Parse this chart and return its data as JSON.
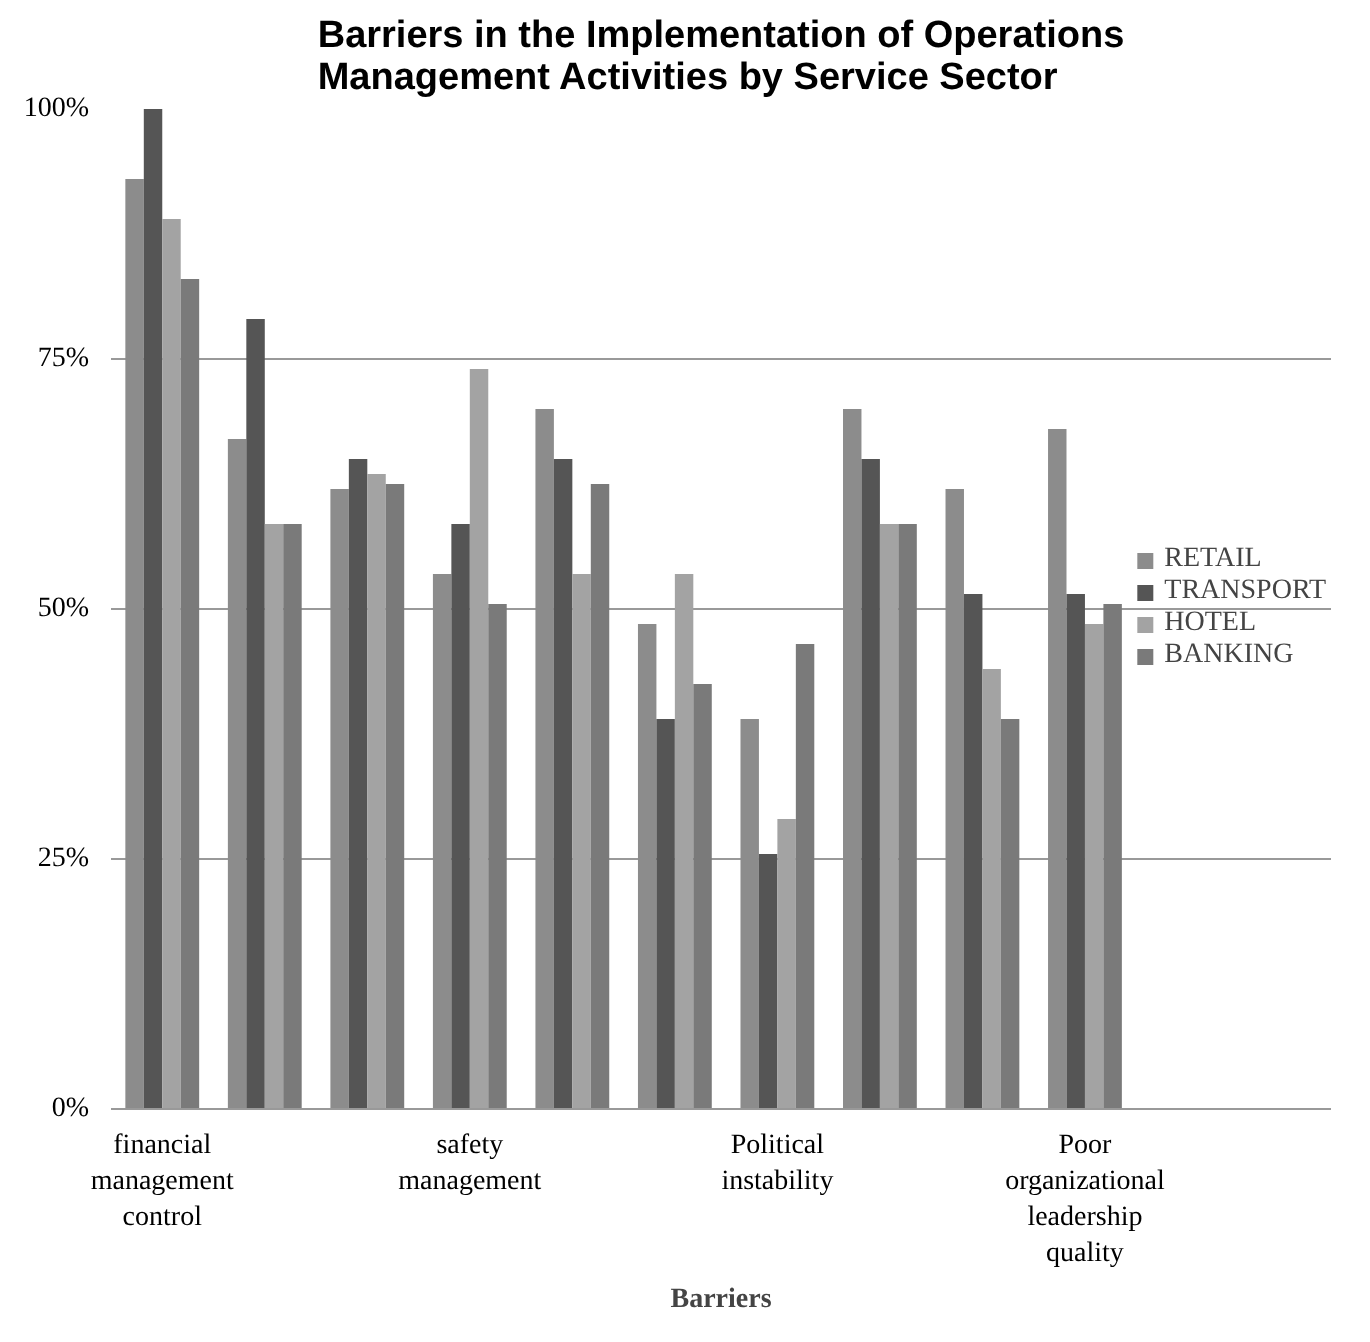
{
  "chart_data": {
    "type": "bar",
    "title": "Barriers in the Implementation of Operations Management Activities by Service Sector",
    "xlabel": "Barriers",
    "categories": [
      "financial management control",
      null,
      null,
      "safety management",
      null,
      null,
      "Political instability",
      null,
      null,
      "Poor organizational leadership quality"
    ],
    "series": [
      {
        "name": "RETAIL",
        "color": "#8c8c8c",
        "values": [
          93,
          67,
          62,
          53.5,
          70,
          48.5,
          39,
          70,
          62,
          68
        ]
      },
      {
        "name": "TRANSPORT",
        "color": "#555555",
        "values": [
          100,
          79,
          65,
          58.5,
          65,
          39,
          25.5,
          65,
          51.5,
          51.5
        ]
      },
      {
        "name": "HOTEL",
        "color": "#a3a3a3",
        "values": [
          89,
          58.5,
          63.5,
          74,
          53.5,
          53.5,
          29,
          58.5,
          44,
          48.5
        ]
      },
      {
        "name": "BANKING",
        "color": "#7a7a7a",
        "values": [
          83,
          58.5,
          62.5,
          50.5,
          62.5,
          42.5,
          46.5,
          58.5,
          39,
          50.5
        ]
      }
    ],
    "ylim": [
      0,
      100
    ],
    "yticks": [
      {
        "value": 0,
        "label": "0%"
      },
      {
        "value": 25,
        "label": "25%"
      },
      {
        "value": 50,
        "label": "50%"
      },
      {
        "value": 75,
        "label": "75%"
      },
      {
        "value": 100,
        "label": "100%"
      }
    ],
    "grid": "y",
    "legend": "right"
  }
}
